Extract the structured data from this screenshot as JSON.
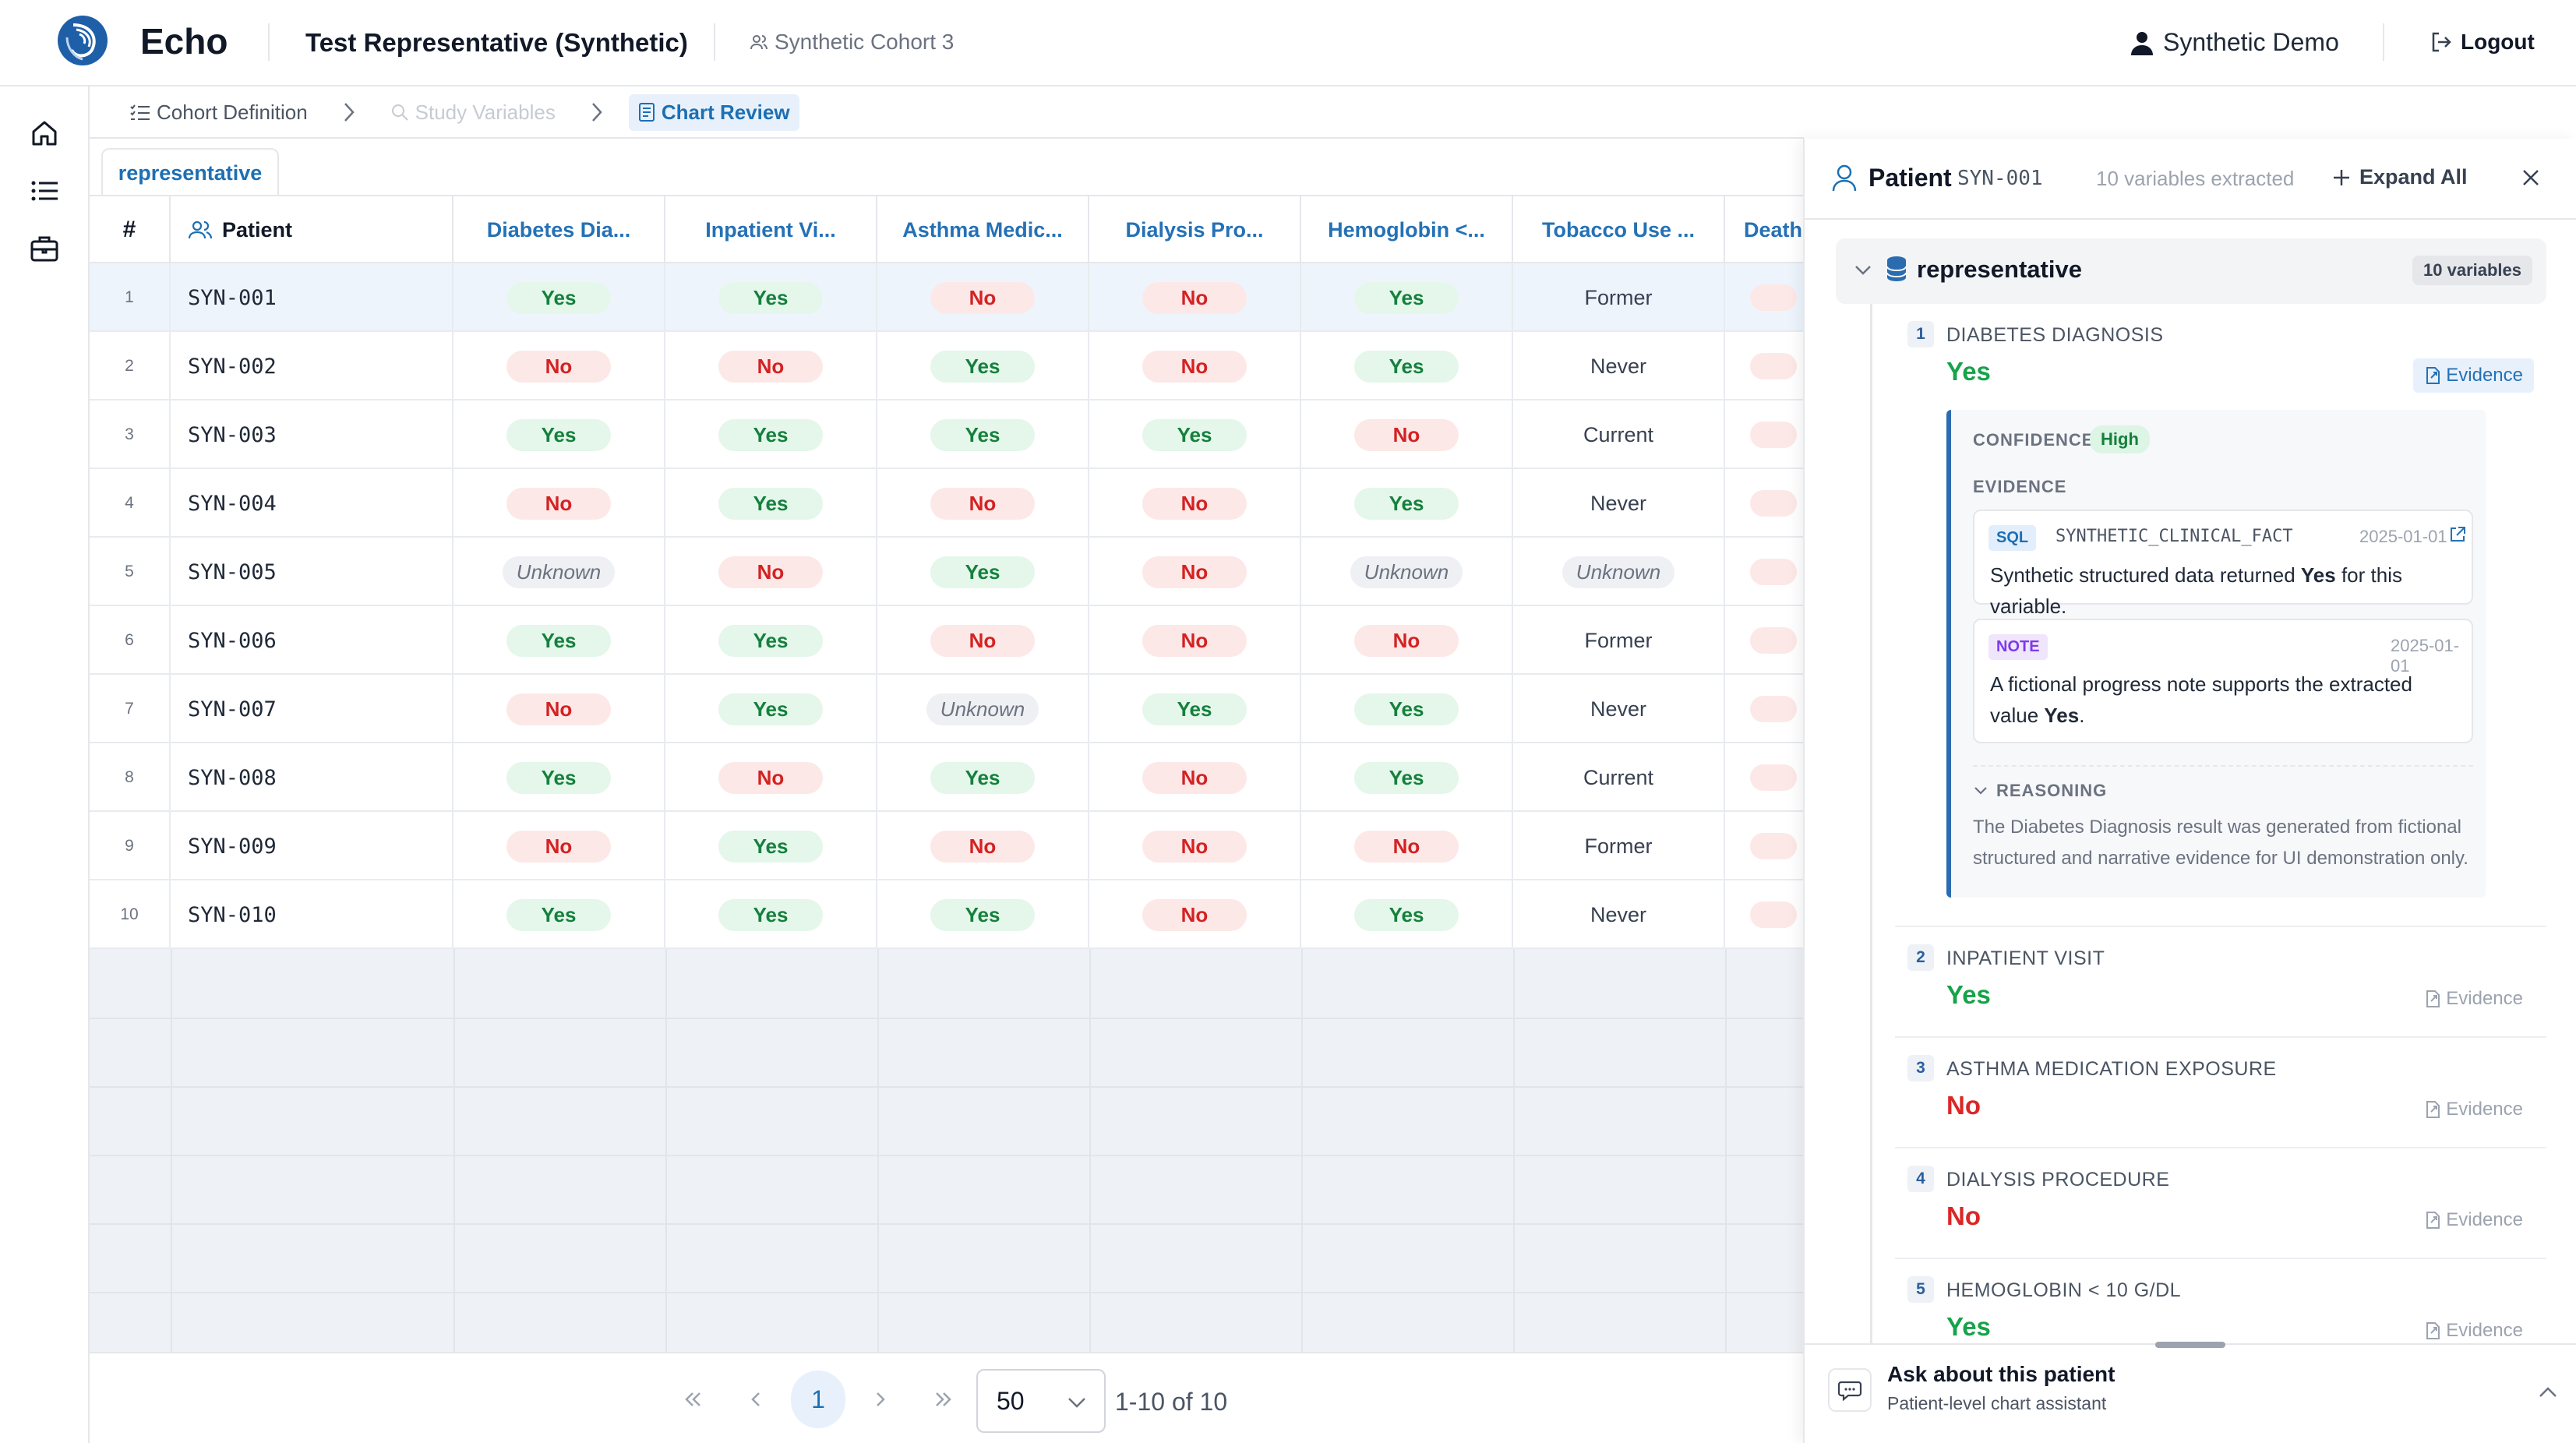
{
  "app": {
    "name": "Echo",
    "project": "Test Representative (Synthetic)",
    "cohort": "Synthetic Cohort 3"
  },
  "user": {
    "name": "Synthetic Demo",
    "logout_label": "Logout"
  },
  "breadcrumb": {
    "step1": "Cohort Definition",
    "step2": "Study Variables",
    "step3": "Chart Review"
  },
  "tab": {
    "label": "representative"
  },
  "grid": {
    "headers": {
      "num": "#",
      "patient": "Patient",
      "c1": "Diabetes Dia...",
      "c2": "Inpatient Vi...",
      "c3": "Asthma Medic...",
      "c4": "Dialysis Pro...",
      "c5": "Hemoglobin <...",
      "c6": "Tobacco Use ...",
      "c7": "Death..."
    },
    "rows": [
      {
        "n": "1",
        "id": "SYN-001",
        "v": [
          "Yes",
          "Yes",
          "No",
          "No",
          "Yes",
          "Former"
        ]
      },
      {
        "n": "2",
        "id": "SYN-002",
        "v": [
          "No",
          "No",
          "Yes",
          "No",
          "Yes",
          "Never"
        ]
      },
      {
        "n": "3",
        "id": "SYN-003",
        "v": [
          "Yes",
          "Yes",
          "Yes",
          "Yes",
          "No",
          "Current"
        ]
      },
      {
        "n": "4",
        "id": "SYN-004",
        "v": [
          "No",
          "Yes",
          "No",
          "No",
          "Yes",
          "Never"
        ]
      },
      {
        "n": "5",
        "id": "SYN-005",
        "v": [
          "Unknown",
          "No",
          "Yes",
          "No",
          "Unknown",
          "Unknown"
        ]
      },
      {
        "n": "6",
        "id": "SYN-006",
        "v": [
          "Yes",
          "Yes",
          "No",
          "No",
          "No",
          "Former"
        ]
      },
      {
        "n": "7",
        "id": "SYN-007",
        "v": [
          "No",
          "Yes",
          "Unknown",
          "Yes",
          "Yes",
          "Never"
        ]
      },
      {
        "n": "8",
        "id": "SYN-008",
        "v": [
          "Yes",
          "No",
          "Yes",
          "No",
          "Yes",
          "Current"
        ]
      },
      {
        "n": "9",
        "id": "SYN-009",
        "v": [
          "No",
          "Yes",
          "No",
          "No",
          "No",
          "Former"
        ]
      },
      {
        "n": "10",
        "id": "SYN-010",
        "v": [
          "Yes",
          "Yes",
          "Yes",
          "No",
          "Yes",
          "Never"
        ]
      }
    ]
  },
  "pagination": {
    "page": "1",
    "page_size": "50",
    "range": "1-10 of 10"
  },
  "panel": {
    "title": "Patient",
    "patient_id": "SYN-001",
    "extracted_count": "10 variables extracted",
    "expand_all": "Expand All",
    "group_name": "representative",
    "group_badge": "10 variables",
    "evidence_label": "Evidence",
    "variables": [
      {
        "num": "1",
        "name": "DIABETES DIAGNOSIS",
        "value": "Yes"
      },
      {
        "num": "2",
        "name": "INPATIENT VISIT",
        "value": "Yes"
      },
      {
        "num": "3",
        "name": "ASTHMA MEDICATION EXPOSURE",
        "value": "No"
      },
      {
        "num": "4",
        "name": "DIALYSIS PROCEDURE",
        "value": "No"
      },
      {
        "num": "5",
        "name": "HEMOGLOBIN < 10 G/DL",
        "value": "Yes"
      }
    ],
    "detail": {
      "confidence_label": "CONFIDENCE",
      "confidence": "High",
      "evidence_heading": "EVIDENCE",
      "sql": {
        "tag": "SQL",
        "source": "SYNTHETIC_CLINICAL_FACT",
        "date": "2025-01-01",
        "text_before": "Synthetic structured data returned ",
        "text_bold": "Yes",
        "text_after": " for this variable."
      },
      "note": {
        "tag": "NOTE",
        "date": "2025-01-01",
        "text_before": "A fictional progress note supports the extracted value ",
        "text_bold": "Yes",
        "text_after": "."
      },
      "reasoning_label": "REASONING",
      "reasoning": "The Diabetes Diagnosis result was generated from fictional structured and narrative evidence for UI demonstration only."
    }
  },
  "chat": {
    "title": "Ask about this patient",
    "subtitle": "Patient-level chart assistant"
  },
  "colors": {
    "accent": "#1d6fb3",
    "yes": "#15803d",
    "no": "#d42222"
  }
}
